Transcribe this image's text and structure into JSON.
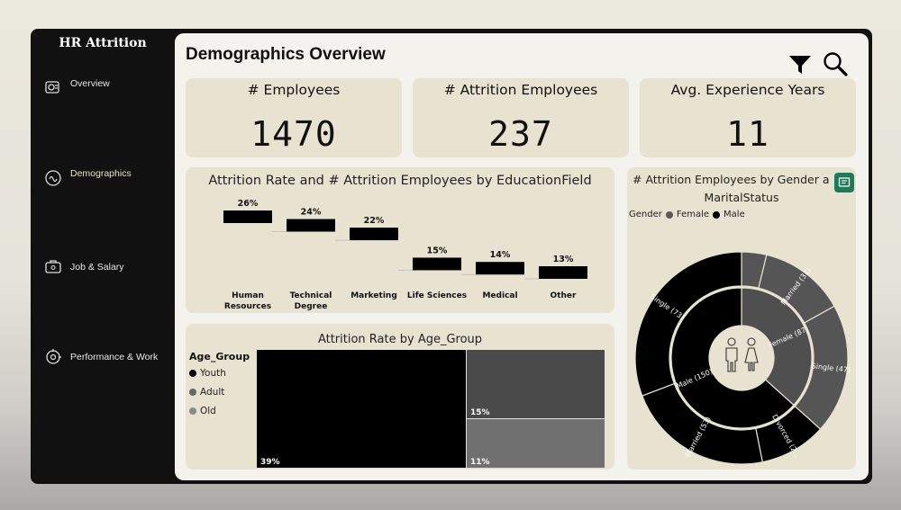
{
  "app": {
    "title": "HR Attrition"
  },
  "sidebar": {
    "items": [
      {
        "label": "Overview",
        "icon": "overview-icon"
      },
      {
        "label": "Demographics",
        "icon": "demographics-icon"
      },
      {
        "label": "Job & Salary",
        "icon": "job-salary-icon"
      },
      {
        "label": "Performance & Work",
        "icon": "performance-icon"
      }
    ]
  },
  "page": {
    "title": "Demographics Overview"
  },
  "kpis": [
    {
      "label": "# Employees",
      "value": "1470"
    },
    {
      "label": "# Attrition Employees",
      "value": "237"
    },
    {
      "label": "Avg. Experience Years",
      "value": "11"
    }
  ],
  "colors": {
    "black": "#000000",
    "darkgray": "#4a4a4a",
    "gray": "#6f6f6f",
    "card": "#e8e2d0",
    "accent": "#1f7a57"
  },
  "chart_data": [
    {
      "type": "bar",
      "title": "Attrition Rate and # Attrition Employees by EducationField",
      "categories": [
        "Human\nResources",
        "Technical\nDegree",
        "Marketing",
        "Life Sciences",
        "Medical",
        "Other"
      ],
      "category_lines": [
        [
          "Human",
          "Resources"
        ],
        [
          "Technical",
          "Degree"
        ],
        [
          "Marketing"
        ],
        [
          "Life Sciences"
        ],
        [
          "Medical"
        ],
        [
          "Other"
        ]
      ],
      "values": [
        26,
        24,
        22,
        15,
        14,
        13
      ],
      "labels": [
        "26%",
        "24%",
        "22%",
        "15%",
        "14%",
        "13%"
      ]
    },
    {
      "type": "treemap",
      "title": "Attrition Rate by Age_Group",
      "legend_title": "Age_Group",
      "categories": [
        "Youth",
        "Adult",
        "Old"
      ],
      "values": [
        39,
        15,
        11
      ],
      "labels": [
        "39%",
        "15%",
        "11%"
      ],
      "colors": [
        "#000000",
        "#4a4a4a",
        "#707070"
      ]
    },
    {
      "type": "pie",
      "title": "# Attrition Employees by Gender a",
      "title_line2": "MaritalStatus",
      "legend_title": "Gender",
      "legend": [
        {
          "name": "Female",
          "color": "#5a5a5a"
        },
        {
          "name": "Male",
          "color": "#000000"
        }
      ],
      "inner": [
        {
          "name": "Female",
          "label": "Female (87)",
          "value": 87,
          "color": "#4f4f4f"
        },
        {
          "name": "Male",
          "label": "Male (150)",
          "value": 150,
          "color": "#000000"
        }
      ],
      "outer": [
        {
          "parent": "Female",
          "name": "Divorced",
          "label": "",
          "value": 9,
          "color": "#555555"
        },
        {
          "parent": "Female",
          "name": "Married",
          "label": "Married (31)",
          "value": 31,
          "color": "#555555"
        },
        {
          "parent": "Female",
          "name": "Single",
          "label": "Single (47)",
          "value": 47,
          "color": "#555555"
        },
        {
          "parent": "Male",
          "name": "Divorced",
          "label": "Divorced (2...",
          "value": 24,
          "color": "#000000"
        },
        {
          "parent": "Male",
          "name": "Married",
          "label": "Married (53)",
          "value": 53,
          "color": "#000000"
        },
        {
          "parent": "Male",
          "name": "Single",
          "label": "Single (73)",
          "value": 73,
          "color": "#000000"
        }
      ]
    }
  ]
}
